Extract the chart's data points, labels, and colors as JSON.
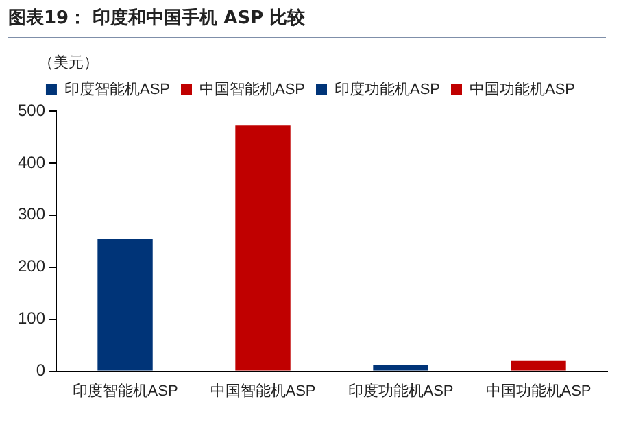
{
  "chart_data": {
    "type": "bar",
    "title": "图表19： 印度和中国手机 ASP 比较",
    "ylabel": "（美元）",
    "categories": [
      "印度智能机ASP",
      "中国智能机ASP",
      "印度功能机ASP",
      "中国功能机ASP"
    ],
    "series": [
      {
        "name": "印度智能机ASP",
        "color": "#003478",
        "values": [
          254,
          null,
          null,
          null
        ]
      },
      {
        "name": "中国智能机ASP",
        "color": "#c00000",
        "values": [
          null,
          472,
          null,
          null
        ]
      },
      {
        "name": "印度功能机ASP",
        "color": "#003478",
        "values": [
          null,
          null,
          12,
          null
        ]
      },
      {
        "name": "中国功能机ASP",
        "color": "#c00000",
        "values": [
          null,
          null,
          null,
          21
        ]
      }
    ],
    "ylim": [
      0,
      500
    ],
    "yticks": [
      0,
      100,
      200,
      300,
      400,
      500
    ],
    "grid": false,
    "legend": "top"
  }
}
